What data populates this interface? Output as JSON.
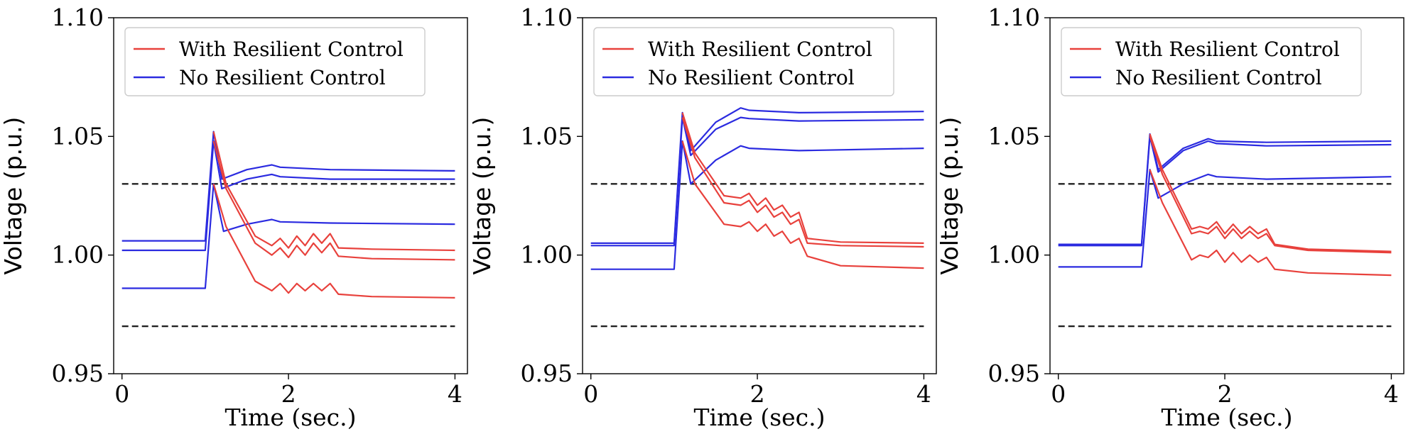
{
  "colors": {
    "with": "#e8413c",
    "without": "#2b2be0",
    "limit": "#222222"
  },
  "chart_data": [
    {
      "type": "line",
      "xlabel": "Time (sec.)",
      "ylabel": "Voltage (p.u.)",
      "xlim": [
        -0.1,
        4.15
      ],
      "ylim": [
        0.95,
        1.1
      ],
      "xticks": [
        0,
        2,
        4
      ],
      "xtick_labels": [
        "0",
        "2",
        "4"
      ],
      "yticks": [
        0.95,
        1.0,
        1.05,
        1.1
      ],
      "ytick_labels": [
        "0.95",
        "1.00",
        "1.05",
        "1.10"
      ],
      "legend": {
        "position": "upper-left",
        "entries": [
          "With Resilient Control",
          "No Resilient Control"
        ]
      },
      "limits": [
        1.03,
        0.97
      ],
      "series": [
        {
          "name": "No Resilient Control",
          "group": "without",
          "points": [
            [
              0,
              1.006
            ],
            [
              1.0,
              1.006
            ],
            [
              1.1,
              1.052
            ],
            [
              1.2,
              1.032
            ],
            [
              1.5,
              1.036
            ],
            [
              1.8,
              1.038
            ],
            [
              1.9,
              1.037
            ],
            [
              2.5,
              1.036
            ],
            [
              4,
              1.0355
            ]
          ]
        },
        {
          "name": "No Resilient Control",
          "group": "without",
          "points": [
            [
              0,
              1.002
            ],
            [
              1.0,
              1.002
            ],
            [
              1.1,
              1.048
            ],
            [
              1.2,
              1.028
            ],
            [
              1.5,
              1.032
            ],
            [
              1.8,
              1.034
            ],
            [
              1.9,
              1.033
            ],
            [
              2.5,
              1.032
            ],
            [
              4,
              1.032
            ]
          ]
        },
        {
          "name": "No Resilient Control",
          "group": "without",
          "points": [
            [
              0,
              0.986
            ],
            [
              1.0,
              0.986
            ],
            [
              1.1,
              1.03
            ],
            [
              1.22,
              1.01
            ],
            [
              1.5,
              1.013
            ],
            [
              1.8,
              1.015
            ],
            [
              1.9,
              1.014
            ],
            [
              2.5,
              1.0135
            ],
            [
              4,
              1.013
            ]
          ]
        },
        {
          "name": "With Resilient Control",
          "group": "with",
          "points": [
            [
              1.1,
              1.052
            ],
            [
              1.25,
              1.03
            ],
            [
              1.6,
              1.008
            ],
            [
              1.8,
              1.004
            ],
            [
              1.9,
              1.007
            ],
            [
              2.0,
              1.003
            ],
            [
              2.1,
              1.008
            ],
            [
              2.2,
              1.004
            ],
            [
              2.3,
              1.009
            ],
            [
              2.4,
              1.005
            ],
            [
              2.5,
              1.009
            ],
            [
              2.6,
              1.003
            ],
            [
              3.0,
              1.0025
            ],
            [
              4,
              1.002
            ]
          ]
        },
        {
          "name": "With Resilient Control",
          "group": "with",
          "points": [
            [
              1.1,
              1.048
            ],
            [
              1.25,
              1.028
            ],
            [
              1.6,
              1.005
            ],
            [
              1.8,
              1.0
            ],
            [
              1.9,
              1.003
            ],
            [
              2.0,
              0.999
            ],
            [
              2.1,
              1.004
            ],
            [
              2.2,
              1.0
            ],
            [
              2.3,
              1.005
            ],
            [
              2.4,
              1.001
            ],
            [
              2.5,
              1.005
            ],
            [
              2.6,
              0.9995
            ],
            [
              3.0,
              0.9985
            ],
            [
              4,
              0.998
            ]
          ]
        },
        {
          "name": "With Resilient Control",
          "group": "with",
          "points": [
            [
              1.1,
              1.03
            ],
            [
              1.25,
              1.012
            ],
            [
              1.6,
              0.989
            ],
            [
              1.8,
              0.985
            ],
            [
              1.9,
              0.988
            ],
            [
              2.0,
              0.984
            ],
            [
              2.1,
              0.988
            ],
            [
              2.2,
              0.985
            ],
            [
              2.3,
              0.988
            ],
            [
              2.4,
              0.985
            ],
            [
              2.5,
              0.988
            ],
            [
              2.6,
              0.9835
            ],
            [
              3.0,
              0.9825
            ],
            [
              4,
              0.982
            ]
          ]
        }
      ]
    },
    {
      "type": "line",
      "xlabel": "Time (sec.)",
      "ylabel": "Voltage (p.u.)",
      "xlim": [
        -0.1,
        4.15
      ],
      "ylim": [
        0.95,
        1.1
      ],
      "xticks": [
        0,
        2,
        4
      ],
      "xtick_labels": [
        "0",
        "2",
        "4"
      ],
      "yticks": [
        0.95,
        1.0,
        1.05,
        1.1
      ],
      "ytick_labels": [
        "0.95",
        "1.00",
        "1.05",
        "1.10"
      ],
      "legend": {
        "position": "upper-left",
        "entries": [
          "With Resilient Control",
          "No Resilient Control"
        ]
      },
      "limits": [
        1.03,
        0.97
      ],
      "series": [
        {
          "name": "No Resilient Control",
          "group": "without",
          "points": [
            [
              0,
              1.005
            ],
            [
              1.0,
              1.005
            ],
            [
              1.1,
              1.06
            ],
            [
              1.2,
              1.044
            ],
            [
              1.5,
              1.056
            ],
            [
              1.8,
              1.062
            ],
            [
              1.9,
              1.061
            ],
            [
              2.5,
              1.06
            ],
            [
              4,
              1.0605
            ]
          ]
        },
        {
          "name": "No Resilient Control",
          "group": "without",
          "points": [
            [
              0,
              1.004
            ],
            [
              1.0,
              1.004
            ],
            [
              1.1,
              1.058
            ],
            [
              1.2,
              1.042
            ],
            [
              1.5,
              1.053
            ],
            [
              1.8,
              1.058
            ],
            [
              1.9,
              1.0575
            ],
            [
              2.5,
              1.0565
            ],
            [
              4,
              1.057
            ]
          ]
        },
        {
          "name": "No Resilient Control",
          "group": "without",
          "points": [
            [
              0,
              0.994
            ],
            [
              1.0,
              0.994
            ],
            [
              1.1,
              1.048
            ],
            [
              1.2,
              1.03
            ],
            [
              1.5,
              1.04
            ],
            [
              1.8,
              1.046
            ],
            [
              1.9,
              1.045
            ],
            [
              2.5,
              1.044
            ],
            [
              4,
              1.045
            ]
          ]
        },
        {
          "name": "With Resilient Control",
          "group": "with",
          "points": [
            [
              1.1,
              1.06
            ],
            [
              1.25,
              1.043
            ],
            [
              1.6,
              1.025
            ],
            [
              1.8,
              1.024
            ],
            [
              1.9,
              1.026
            ],
            [
              2.0,
              1.021
            ],
            [
              2.1,
              1.024
            ],
            [
              2.2,
              1.019
            ],
            [
              2.3,
              1.021
            ],
            [
              2.4,
              1.016
            ],
            [
              2.5,
              1.018
            ],
            [
              2.6,
              1.007
            ],
            [
              3.0,
              1.0055
            ],
            [
              4,
              1.005
            ]
          ]
        },
        {
          "name": "With Resilient Control",
          "group": "with",
          "points": [
            [
              1.1,
              1.058
            ],
            [
              1.25,
              1.041
            ],
            [
              1.6,
              1.022
            ],
            [
              1.8,
              1.021
            ],
            [
              1.9,
              1.023
            ],
            [
              2.0,
              1.018
            ],
            [
              2.1,
              1.021
            ],
            [
              2.2,
              1.016
            ],
            [
              2.3,
              1.018
            ],
            [
              2.4,
              1.013
            ],
            [
              2.5,
              1.015
            ],
            [
              2.6,
              1.005
            ],
            [
              3.0,
              1.004
            ],
            [
              4,
              1.0035
            ]
          ]
        },
        {
          "name": "With Resilient Control",
          "group": "with",
          "points": [
            [
              1.1,
              1.048
            ],
            [
              1.25,
              1.03
            ],
            [
              1.6,
              1.013
            ],
            [
              1.8,
              1.012
            ],
            [
              1.9,
              1.014
            ],
            [
              2.0,
              1.01
            ],
            [
              2.1,
              1.013
            ],
            [
              2.2,
              1.008
            ],
            [
              2.3,
              1.01
            ],
            [
              2.4,
              1.005
            ],
            [
              2.5,
              1.007
            ],
            [
              2.6,
              0.9995
            ],
            [
              3.0,
              0.9955
            ],
            [
              4,
              0.9945
            ]
          ]
        }
      ]
    },
    {
      "type": "line",
      "xlabel": "Time (sec.)",
      "ylabel": "Voltage (p.u.)",
      "xlim": [
        -0.1,
        4.15
      ],
      "ylim": [
        0.95,
        1.1
      ],
      "xticks": [
        0,
        2,
        4
      ],
      "xtick_labels": [
        "0",
        "2",
        "4"
      ],
      "yticks": [
        0.95,
        1.0,
        1.05,
        1.1
      ],
      "ytick_labels": [
        "0.95",
        "1.00",
        "1.05",
        "1.10"
      ],
      "legend": {
        "position": "upper-left",
        "entries": [
          "With Resilient Control",
          "No Resilient Control"
        ]
      },
      "limits": [
        1.03,
        0.97
      ],
      "series": [
        {
          "name": "No Resilient Control",
          "group": "without",
          "points": [
            [
              0,
              1.0045
            ],
            [
              1.0,
              1.0045
            ],
            [
              1.1,
              1.051
            ],
            [
              1.2,
              1.036
            ],
            [
              1.5,
              1.045
            ],
            [
              1.8,
              1.049
            ],
            [
              1.9,
              1.048
            ],
            [
              2.5,
              1.0475
            ],
            [
              4,
              1.048
            ]
          ]
        },
        {
          "name": "No Resilient Control",
          "group": "without",
          "points": [
            [
              0,
              1.004
            ],
            [
              1.0,
              1.004
            ],
            [
              1.1,
              1.05
            ],
            [
              1.2,
              1.035
            ],
            [
              1.5,
              1.044
            ],
            [
              1.8,
              1.048
            ],
            [
              1.9,
              1.047
            ],
            [
              2.5,
              1.046
            ],
            [
              4,
              1.0465
            ]
          ]
        },
        {
          "name": "No Resilient Control",
          "group": "without",
          "points": [
            [
              0,
              0.995
            ],
            [
              1.0,
              0.995
            ],
            [
              1.1,
              1.036
            ],
            [
              1.2,
              1.024
            ],
            [
              1.5,
              1.03
            ],
            [
              1.8,
              1.034
            ],
            [
              1.9,
              1.033
            ],
            [
              2.5,
              1.032
            ],
            [
              4,
              1.033
            ]
          ]
        },
        {
          "name": "With Resilient Control",
          "group": "with",
          "points": [
            [
              1.1,
              1.051
            ],
            [
              1.25,
              1.036
            ],
            [
              1.6,
              1.011
            ],
            [
              1.7,
              1.012
            ],
            [
              1.8,
              1.011
            ],
            [
              1.9,
              1.014
            ],
            [
              2.0,
              1.009
            ],
            [
              2.1,
              1.013
            ],
            [
              2.2,
              1.009
            ],
            [
              2.3,
              1.012
            ],
            [
              2.4,
              1.009
            ],
            [
              2.5,
              1.011
            ],
            [
              2.6,
              1.0045
            ],
            [
              3.0,
              1.0025
            ],
            [
              4,
              1.0015
            ]
          ]
        },
        {
          "name": "With Resilient Control",
          "group": "with",
          "points": [
            [
              1.1,
              1.05
            ],
            [
              1.25,
              1.034
            ],
            [
              1.6,
              1.009
            ],
            [
              1.7,
              1.01
            ],
            [
              1.8,
              1.009
            ],
            [
              1.9,
              1.012
            ],
            [
              2.0,
              1.007
            ],
            [
              2.1,
              1.011
            ],
            [
              2.2,
              1.007
            ],
            [
              2.3,
              1.01
            ],
            [
              2.4,
              1.007
            ],
            [
              2.5,
              1.009
            ],
            [
              2.6,
              1.004
            ],
            [
              3.0,
              1.002
            ],
            [
              4,
              1.001
            ]
          ]
        },
        {
          "name": "With Resilient Control",
          "group": "with",
          "points": [
            [
              1.1,
              1.036
            ],
            [
              1.25,
              1.022
            ],
            [
              1.6,
              0.998
            ],
            [
              1.7,
              1.0
            ],
            [
              1.8,
              0.999
            ],
            [
              1.9,
              1.002
            ],
            [
              2.0,
              0.997
            ],
            [
              2.1,
              1.001
            ],
            [
              2.2,
              0.997
            ],
            [
              2.3,
              1.0
            ],
            [
              2.4,
              0.997
            ],
            [
              2.5,
              0.999
            ],
            [
              2.6,
              0.994
            ],
            [
              3.0,
              0.9925
            ],
            [
              4,
              0.9915
            ]
          ]
        }
      ]
    }
  ]
}
